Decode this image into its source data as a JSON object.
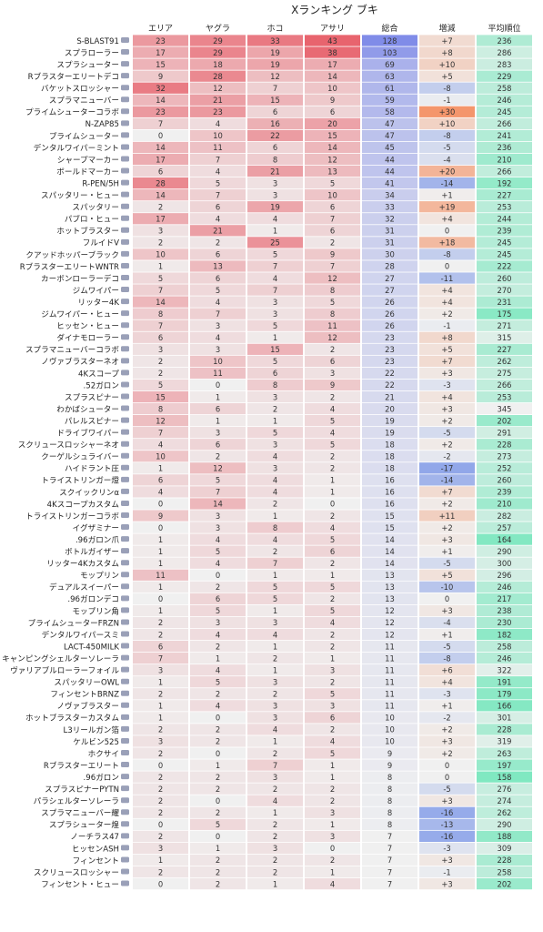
{
  "chart_data": {
    "type": "table",
    "title": "Xランキング ブキ",
    "columns": [
      "エリア",
      "ヤグラ",
      "ホコ",
      "アサリ",
      "総合",
      "増減",
      "平均順位"
    ],
    "rows": [
      {
        "weapon": "S-BLAST91",
        "values": [
          23,
          29,
          33,
          43,
          128,
          "+7",
          236
        ]
      },
      {
        "weapon": "スプラローラー",
        "values": [
          17,
          29,
          19,
          38,
          103,
          "+8",
          286
        ]
      },
      {
        "weapon": "スプラシューター",
        "values": [
          15,
          18,
          19,
          17,
          69,
          "+10",
          283
        ]
      },
      {
        "weapon": "Rブラスターエリートデコ",
        "values": [
          9,
          28,
          12,
          14,
          63,
          "+5",
          229
        ]
      },
      {
        "weapon": "バケットスロッシャー",
        "values": [
          32,
          12,
          7,
          10,
          61,
          "-8",
          258
        ]
      },
      {
        "weapon": "スプラマニューバー",
        "values": [
          14,
          21,
          15,
          9,
          59,
          "-1",
          246
        ]
      },
      {
        "weapon": "プライムシューターコラボ",
        "values": [
          23,
          23,
          6,
          6,
          58,
          "+30",
          245
        ]
      },
      {
        "weapon": "N-ZAP85",
        "values": [
          7,
          4,
          16,
          20,
          47,
          "+10",
          266
        ]
      },
      {
        "weapon": "プライムシューター",
        "values": [
          0,
          10,
          22,
          15,
          47,
          "-8",
          241
        ]
      },
      {
        "weapon": "デンタルワイパーミント",
        "values": [
          14,
          11,
          6,
          14,
          45,
          "-5",
          236
        ]
      },
      {
        "weapon": "シャープマーカー",
        "values": [
          17,
          7,
          8,
          12,
          44,
          "-4",
          210
        ]
      },
      {
        "weapon": "ボールドマーカー",
        "values": [
          6,
          4,
          21,
          13,
          44,
          "+20",
          266
        ]
      },
      {
        "weapon": "R-PEN/5H",
        "values": [
          28,
          5,
          3,
          5,
          41,
          "-14",
          192
        ]
      },
      {
        "weapon": "スパッタリー・ヒュー",
        "values": [
          14,
          7,
          3,
          10,
          34,
          "+1",
          227
        ]
      },
      {
        "weapon": "スパッタリー",
        "values": [
          2,
          6,
          19,
          6,
          33,
          "+19",
          253
        ]
      },
      {
        "weapon": "パブロ・ヒュー",
        "values": [
          17,
          4,
          4,
          7,
          32,
          "+4",
          244
        ]
      },
      {
        "weapon": "ホットブラスター",
        "values": [
          3,
          21,
          1,
          6,
          31,
          "0",
          239
        ]
      },
      {
        "weapon": "フルイドV",
        "values": [
          2,
          2,
          25,
          2,
          31,
          "+18",
          245
        ]
      },
      {
        "weapon": "クアッドホッパーブラック",
        "values": [
          10,
          6,
          5,
          9,
          30,
          "-8",
          245
        ]
      },
      {
        "weapon": "RブラスターエリートWNTR",
        "values": [
          1,
          13,
          7,
          7,
          28,
          "0",
          222
        ]
      },
      {
        "weapon": "カーボンローラーデコ",
        "values": [
          5,
          6,
          4,
          12,
          27,
          "-11",
          260
        ]
      },
      {
        "weapon": "ジムワイパー",
        "values": [
          7,
          5,
          7,
          8,
          27,
          "+4",
          270
        ]
      },
      {
        "weapon": "リッター4K",
        "values": [
          14,
          4,
          3,
          5,
          26,
          "+4",
          231
        ]
      },
      {
        "weapon": "ジムワイパー・ヒュー",
        "values": [
          8,
          7,
          3,
          8,
          26,
          "+2",
          175
        ]
      },
      {
        "weapon": "ヒッセン・ヒュー",
        "values": [
          7,
          3,
          5,
          11,
          26,
          "-1",
          271
        ]
      },
      {
        "weapon": "ダイナモローラー",
        "values": [
          6,
          4,
          1,
          12,
          23,
          "+8",
          315
        ]
      },
      {
        "weapon": "スプラマニューバーコラボ",
        "values": [
          3,
          3,
          15,
          2,
          23,
          "+5",
          227
        ]
      },
      {
        "weapon": "ノヴァブラスターネオ",
        "values": [
          2,
          10,
          5,
          6,
          23,
          "+7",
          262
        ]
      },
      {
        "weapon": "4Kスコープ",
        "values": [
          2,
          11,
          6,
          3,
          22,
          "+3",
          275
        ]
      },
      {
        "weapon": ".52ガロン",
        "values": [
          5,
          0,
          8,
          9,
          22,
          "-3",
          266
        ]
      },
      {
        "weapon": "スプラスピナー",
        "values": [
          15,
          1,
          3,
          2,
          21,
          "+4",
          253
        ]
      },
      {
        "weapon": "わかばシューター",
        "values": [
          8,
          6,
          2,
          4,
          20,
          "+3",
          345
        ]
      },
      {
        "weapon": "パレルスピナー",
        "values": [
          12,
          1,
          1,
          5,
          19,
          "+2",
          202
        ]
      },
      {
        "weapon": "ドライブワイパー",
        "values": [
          7,
          3,
          5,
          4,
          19,
          "-5",
          291
        ]
      },
      {
        "weapon": "スクリュースロッシャーネオ",
        "values": [
          4,
          6,
          3,
          5,
          18,
          "+2",
          228
        ]
      },
      {
        "weapon": "クーゲルシュライバー",
        "values": [
          10,
          2,
          4,
          2,
          18,
          "-2",
          273
        ]
      },
      {
        "weapon": "ハイドラント圧",
        "values": [
          1,
          12,
          3,
          2,
          18,
          "-17",
          252
        ]
      },
      {
        "weapon": "トライストリンガー燈",
        "values": [
          6,
          5,
          4,
          1,
          16,
          "-14",
          260
        ]
      },
      {
        "weapon": "スクイックリンα",
        "values": [
          4,
          7,
          4,
          1,
          16,
          "+7",
          239
        ]
      },
      {
        "weapon": "4Kスコープカスタム",
        "values": [
          0,
          14,
          2,
          0,
          16,
          "+2",
          210
        ]
      },
      {
        "weapon": "トライストリンガーコラボ",
        "values": [
          9,
          3,
          1,
          2,
          15,
          "+11",
          282
        ]
      },
      {
        "weapon": "イグザミナー",
        "values": [
          0,
          3,
          8,
          4,
          15,
          "+2",
          257
        ]
      },
      {
        "weapon": ".96ガロン爪",
        "values": [
          1,
          4,
          4,
          5,
          14,
          "+3",
          164
        ]
      },
      {
        "weapon": "ボトルガイザー",
        "values": [
          1,
          5,
          2,
          6,
          14,
          "+1",
          290
        ]
      },
      {
        "weapon": "リッター4Kカスタム",
        "values": [
          1,
          4,
          7,
          2,
          14,
          "-5",
          300
        ]
      },
      {
        "weapon": "モップリン",
        "values": [
          11,
          0,
          1,
          1,
          13,
          "+5",
          296
        ]
      },
      {
        "weapon": "デュアルスイーパー",
        "values": [
          1,
          2,
          5,
          5,
          13,
          "-10",
          246
        ]
      },
      {
        "weapon": ".96ガロンデコ",
        "values": [
          0,
          6,
          5,
          2,
          13,
          "0",
          217
        ]
      },
      {
        "weapon": "モップリン角",
        "values": [
          1,
          5,
          1,
          5,
          12,
          "+3",
          238
        ]
      },
      {
        "weapon": "プライムシューターFRZN",
        "values": [
          2,
          3,
          3,
          4,
          12,
          "-4",
          230
        ]
      },
      {
        "weapon": "デンタルワイパースミ",
        "values": [
          2,
          4,
          4,
          2,
          12,
          "+1",
          182
        ]
      },
      {
        "weapon": "LACT-450MILK",
        "values": [
          6,
          2,
          1,
          2,
          11,
          "-5",
          258
        ]
      },
      {
        "weapon": "キャンピングシェルターソレーラ",
        "values": [
          7,
          1,
          2,
          1,
          11,
          "-8",
          246
        ]
      },
      {
        "weapon": "ヴァリアブルローラーフォイル",
        "values": [
          3,
          4,
          1,
          3,
          11,
          "+6",
          322
        ]
      },
      {
        "weapon": "スパッタリーOWL",
        "values": [
          1,
          5,
          3,
          2,
          11,
          "+4",
          191
        ]
      },
      {
        "weapon": "フィンセントBRNZ",
        "values": [
          2,
          2,
          2,
          5,
          11,
          "-3",
          179
        ]
      },
      {
        "weapon": "ノヴァブラスター",
        "values": [
          1,
          4,
          3,
          3,
          11,
          "+1",
          166
        ]
      },
      {
        "weapon": "ホットブラスターカスタム",
        "values": [
          1,
          0,
          3,
          6,
          10,
          "-2",
          301
        ]
      },
      {
        "weapon": "L3リールガン箔",
        "values": [
          2,
          2,
          4,
          2,
          10,
          "+2",
          228
        ]
      },
      {
        "weapon": "ケルビン525",
        "values": [
          3,
          2,
          1,
          4,
          10,
          "+3",
          319
        ]
      },
      {
        "weapon": "ホクサイ",
        "values": [
          2,
          0,
          2,
          5,
          9,
          "+2",
          263
        ]
      },
      {
        "weapon": "Rブラスターエリート",
        "values": [
          0,
          1,
          7,
          1,
          9,
          "0",
          197
        ]
      },
      {
        "weapon": ".96ガロン",
        "values": [
          2,
          2,
          3,
          1,
          8,
          "0",
          158
        ]
      },
      {
        "weapon": "スプラスピナーPYTN",
        "values": [
          2,
          2,
          2,
          2,
          8,
          "-5",
          276
        ]
      },
      {
        "weapon": "パラシェルターソレーラ",
        "values": [
          2,
          0,
          4,
          2,
          8,
          "+3",
          274
        ]
      },
      {
        "weapon": "スプラマニューバー耀",
        "values": [
          2,
          2,
          1,
          3,
          8,
          "-16",
          262
        ]
      },
      {
        "weapon": "スプラシューター煌",
        "values": [
          0,
          5,
          2,
          1,
          8,
          "-13",
          290
        ]
      },
      {
        "weapon": "ノーチラス47",
        "values": [
          2,
          0,
          2,
          3,
          7,
          "-16",
          188
        ]
      },
      {
        "weapon": "ヒッセンASH",
        "values": [
          3,
          1,
          3,
          0,
          7,
          "-3",
          309
        ]
      },
      {
        "weapon": "フィンセント",
        "values": [
          1,
          2,
          2,
          2,
          7,
          "+3",
          228
        ]
      },
      {
        "weapon": "スクリュースロッシャー",
        "values": [
          2,
          2,
          2,
          1,
          7,
          "-1",
          258
        ]
      },
      {
        "weapon": "フィンセント・ヒュー",
        "values": [
          0,
          2,
          1,
          4,
          7,
          "+3",
          202
        ]
      }
    ]
  }
}
